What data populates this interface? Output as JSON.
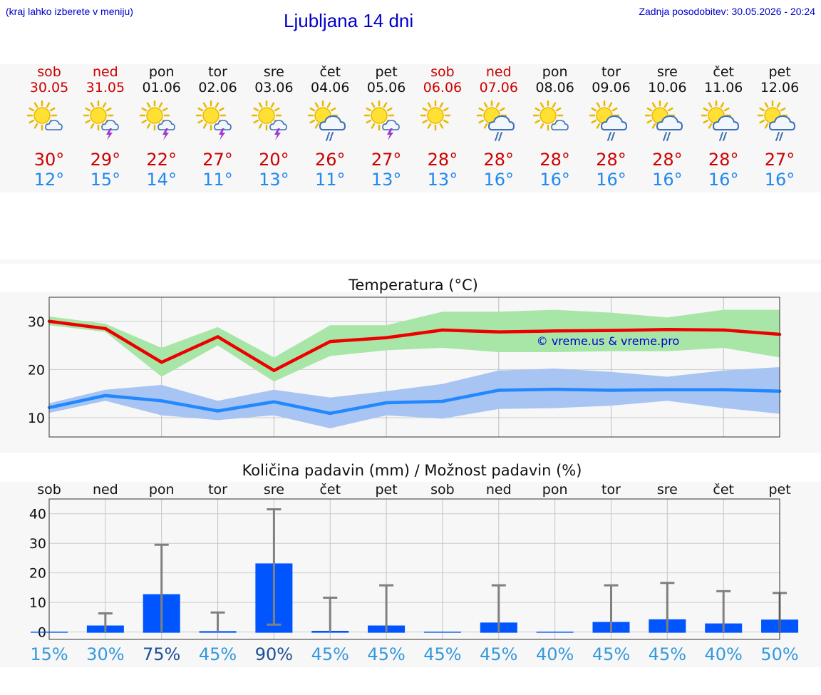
{
  "header": {
    "hint": "(kraj lahko izberete v meniju)",
    "title": "Ljubljana 14 dni",
    "updated": "Zadnja posodobitev: 30.05.2026 - 20:24"
  },
  "days": [
    {
      "name": "sob",
      "date": "30.05",
      "weekend": true,
      "icon": "sun-cloud-icon",
      "max": "30°",
      "min": "12°"
    },
    {
      "name": "ned",
      "date": "31.05",
      "weekend": true,
      "icon": "sun-cloud-thunder-icon",
      "max": "29°",
      "min": "15°"
    },
    {
      "name": "pon",
      "date": "01.06",
      "weekend": false,
      "icon": "sun-cloud-thunder-icon",
      "max": "22°",
      "min": "14°"
    },
    {
      "name": "tor",
      "date": "02.06",
      "weekend": false,
      "icon": "sun-cloud-thunder-icon",
      "max": "27°",
      "min": "11°"
    },
    {
      "name": "sre",
      "date": "03.06",
      "weekend": false,
      "icon": "sun-cloud-thunder-icon",
      "max": "20°",
      "min": "13°"
    },
    {
      "name": "čet",
      "date": "04.06",
      "weekend": false,
      "icon": "sun-cloud-rain-icon",
      "max": "26°",
      "min": "11°"
    },
    {
      "name": "pet",
      "date": "05.06",
      "weekend": false,
      "icon": "sun-cloud-thunder-icon",
      "max": "27°",
      "min": "13°"
    },
    {
      "name": "sob",
      "date": "06.06",
      "weekend": true,
      "icon": "sun-icon",
      "max": "28°",
      "min": "13°"
    },
    {
      "name": "ned",
      "date": "07.06",
      "weekend": true,
      "icon": "sun-cloud-rain-icon",
      "max": "28°",
      "min": "16°"
    },
    {
      "name": "pon",
      "date": "08.06",
      "weekend": false,
      "icon": "sun-cloud-icon",
      "max": "28°",
      "min": "16°"
    },
    {
      "name": "tor",
      "date": "09.06",
      "weekend": false,
      "icon": "sun-cloud-rain-icon",
      "max": "28°",
      "min": "16°"
    },
    {
      "name": "sre",
      "date": "10.06",
      "weekend": false,
      "icon": "sun-cloud-rain-icon",
      "max": "28°",
      "min": "16°"
    },
    {
      "name": "čet",
      "date": "11.06",
      "weekend": false,
      "icon": "sun-cloud-rain-icon",
      "max": "28°",
      "min": "16°"
    },
    {
      "name": "pet",
      "date": "12.06",
      "weekend": false,
      "icon": "sun-cloud-rain-icon",
      "max": "27°",
      "min": "16°"
    }
  ],
  "colors": {
    "weekend": "#cc0000",
    "max": "#cc0000",
    "min": "#2288ee",
    "max_line": "#ee0000",
    "max_band": "#a8e6a8",
    "min_line": "#2288ff",
    "min_band": "#a8c4f2",
    "bar": "#0055ff",
    "whisker": "#808080",
    "band_bg": "#f7f7f7"
  },
  "chart_data": [
    {
      "type": "line",
      "title": "Temperatura (°C)",
      "watermark": "© vreme.us & vreme.pro",
      "x": [
        "30.05",
        "31.05",
        "01.06",
        "02.06",
        "03.06",
        "04.06",
        "05.06",
        "06.06",
        "07.06",
        "08.06",
        "09.06",
        "10.06",
        "11.06",
        "12.06"
      ],
      "ylim": [
        6,
        35
      ],
      "yticks": [
        10,
        20,
        30
      ],
      "grid": true,
      "series": [
        {
          "values": [
            30.0,
            28.5,
            21.5,
            26.8,
            19.8,
            25.8,
            26.6,
            28.2,
            27.8,
            28.0,
            28.1,
            28.3,
            28.2,
            27.3
          ],
          "band_low": [
            29.2,
            27.8,
            18.5,
            25.0,
            17.5,
            22.8,
            24.0,
            24.5,
            23.6,
            23.6,
            23.8,
            23.8,
            24.5,
            22.5
          ],
          "band_high": [
            31.0,
            29.5,
            24.5,
            28.8,
            22.5,
            29.2,
            29.2,
            32.0,
            32.0,
            32.4,
            31.8,
            30.8,
            32.4,
            32.4
          ]
        },
        {
          "values": [
            12.1,
            14.6,
            13.5,
            11.4,
            13.3,
            10.9,
            13.1,
            13.4,
            15.7,
            15.9,
            15.7,
            15.8,
            15.8,
            15.5
          ],
          "band_low": [
            11.0,
            13.5,
            10.5,
            9.5,
            10.5,
            7.8,
            10.5,
            9.8,
            11.8,
            12.0,
            12.5,
            13.5,
            12.0,
            10.8
          ],
          "band_high": [
            13.0,
            15.8,
            16.8,
            13.5,
            15.8,
            14.2,
            15.5,
            17.0,
            19.8,
            20.2,
            19.5,
            18.5,
            19.8,
            20.5
          ]
        }
      ]
    },
    {
      "type": "bar",
      "title": "Količina padavin (mm) / Možnost padavin (%)",
      "categories": [
        "sob",
        "ned",
        "pon",
        "tor",
        "sre",
        "čet",
        "pet",
        "sob",
        "ned",
        "pon",
        "tor",
        "sre",
        "čet",
        "pet"
      ],
      "values": [
        0.1,
        2.2,
        12.8,
        0.3,
        23.2,
        0.4,
        2.2,
        0.1,
        3.2,
        0.1,
        3.4,
        4.3,
        2.9,
        4.2
      ],
      "whisker_low": [
        0,
        0,
        0,
        0,
        2.5,
        0,
        0,
        0,
        0,
        0,
        0,
        0,
        0,
        0
      ],
      "whisker_high": [
        0,
        6.3,
        29.5,
        6.6,
        41.5,
        11.6,
        15.8,
        0,
        15.8,
        0,
        15.8,
        16.6,
        13.8,
        13.2
      ],
      "chance": [
        "15%",
        "30%",
        "75%",
        "45%",
        "90%",
        "45%",
        "45%",
        "45%",
        "45%",
        "40%",
        "45%",
        "45%",
        "40%",
        "50%"
      ],
      "chance_colors": [
        "#3399dd",
        "#3399dd",
        "#1c4f96",
        "#3399dd",
        "#1c4f96",
        "#3399dd",
        "#3399dd",
        "#3399dd",
        "#3399dd",
        "#3399dd",
        "#3399dd",
        "#3399dd",
        "#3399dd",
        "#3399dd"
      ],
      "ylim": [
        -2.5,
        45
      ],
      "yticks": [
        0,
        10,
        20,
        30,
        40
      ],
      "grid": true
    }
  ]
}
